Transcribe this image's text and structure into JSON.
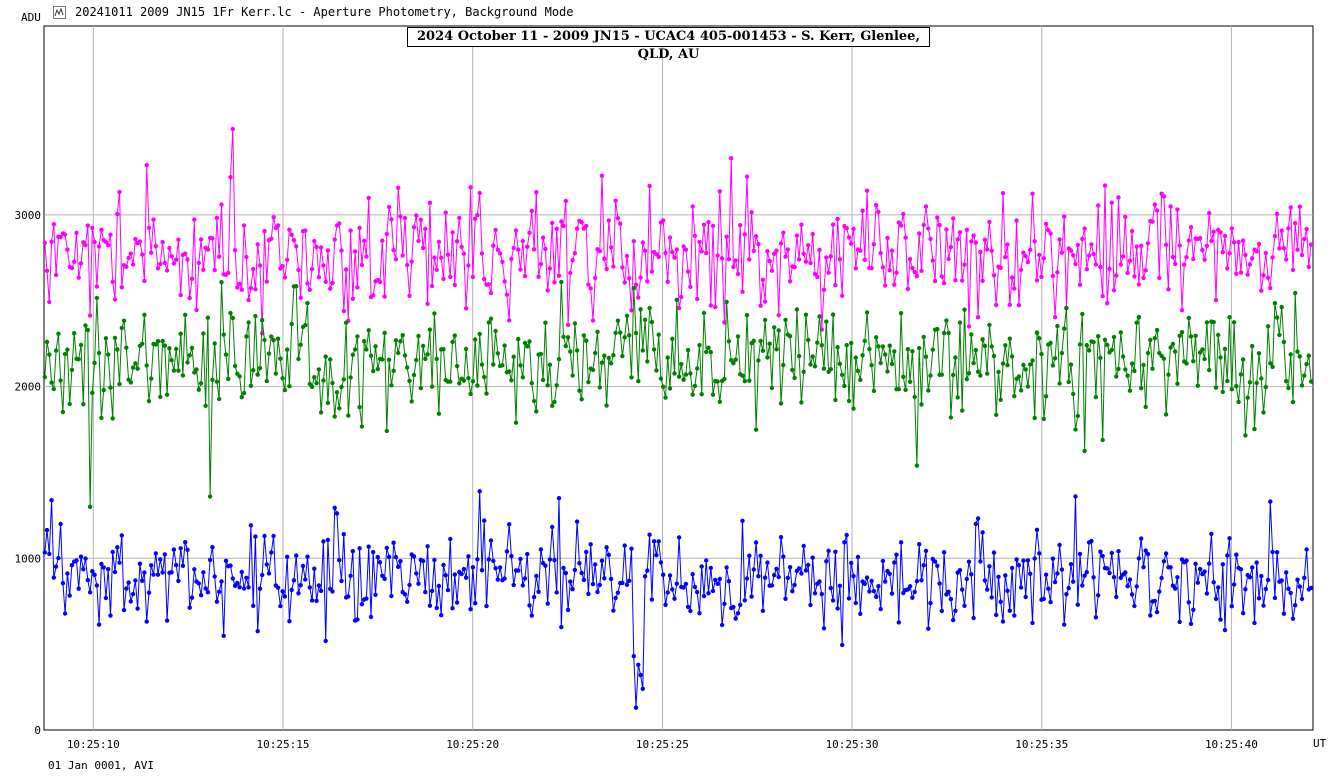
{
  "window": {
    "title": "20241011 2009 JN15 1Fr Kerr.lc - Aperture Photometry, Background Mode",
    "footer": "01 Jan 0001, AVI"
  },
  "chart_data": {
    "type": "line",
    "title": "2024 October 11 - 2009 JN15 - UCAC4 405-001453 - S. Kerr, Glenlee, QLD, AU",
    "ylabel": "ADU",
    "xlabel": "UT",
    "ylim": [
      0,
      4100
    ],
    "xlim": [
      8.7,
      42.15
    ],
    "yticks": [
      0,
      1000,
      2000,
      3000
    ],
    "xticks": [
      10,
      15,
      20,
      25,
      30,
      35,
      40
    ],
    "xtick_labels": [
      "10:25:10",
      "10:25:15",
      "10:25:20",
      "10:25:25",
      "10:25:30",
      "10:25:35",
      "10:25:40"
    ],
    "grid": true,
    "marker": "circle",
    "sampling": {
      "x_start": 8.72,
      "x_end": 42.1,
      "points": 560
    },
    "series": [
      {
        "color": "#ff00ff",
        "mean": 2780,
        "sd": 170,
        "spikes": [
          {
            "x": 13.7,
            "y": 3500
          },
          {
            "x": 11.4,
            "y": 3290
          },
          {
            "x": 26.8,
            "y": 3330
          }
        ]
      },
      {
        "color": "#008000",
        "mean": 2150,
        "sd": 170,
        "spikes": [
          {
            "x": 9.9,
            "y": 1300
          },
          {
            "x": 13.1,
            "y": 1360
          },
          {
            "x": 31.7,
            "y": 1540
          }
        ]
      },
      {
        "color": "#0000ff",
        "mean": 880,
        "sd": 130,
        "spikes": [
          {
            "x": 20.2,
            "y": 1390
          },
          {
            "x": 22.3,
            "y": 1350
          },
          {
            "x": 35.9,
            "y": 1360
          }
        ],
        "dip": {
          "x_start": 24.2,
          "x_end": 24.5,
          "y": [
            430,
            130,
            380,
            320,
            240
          ]
        }
      }
    ]
  }
}
